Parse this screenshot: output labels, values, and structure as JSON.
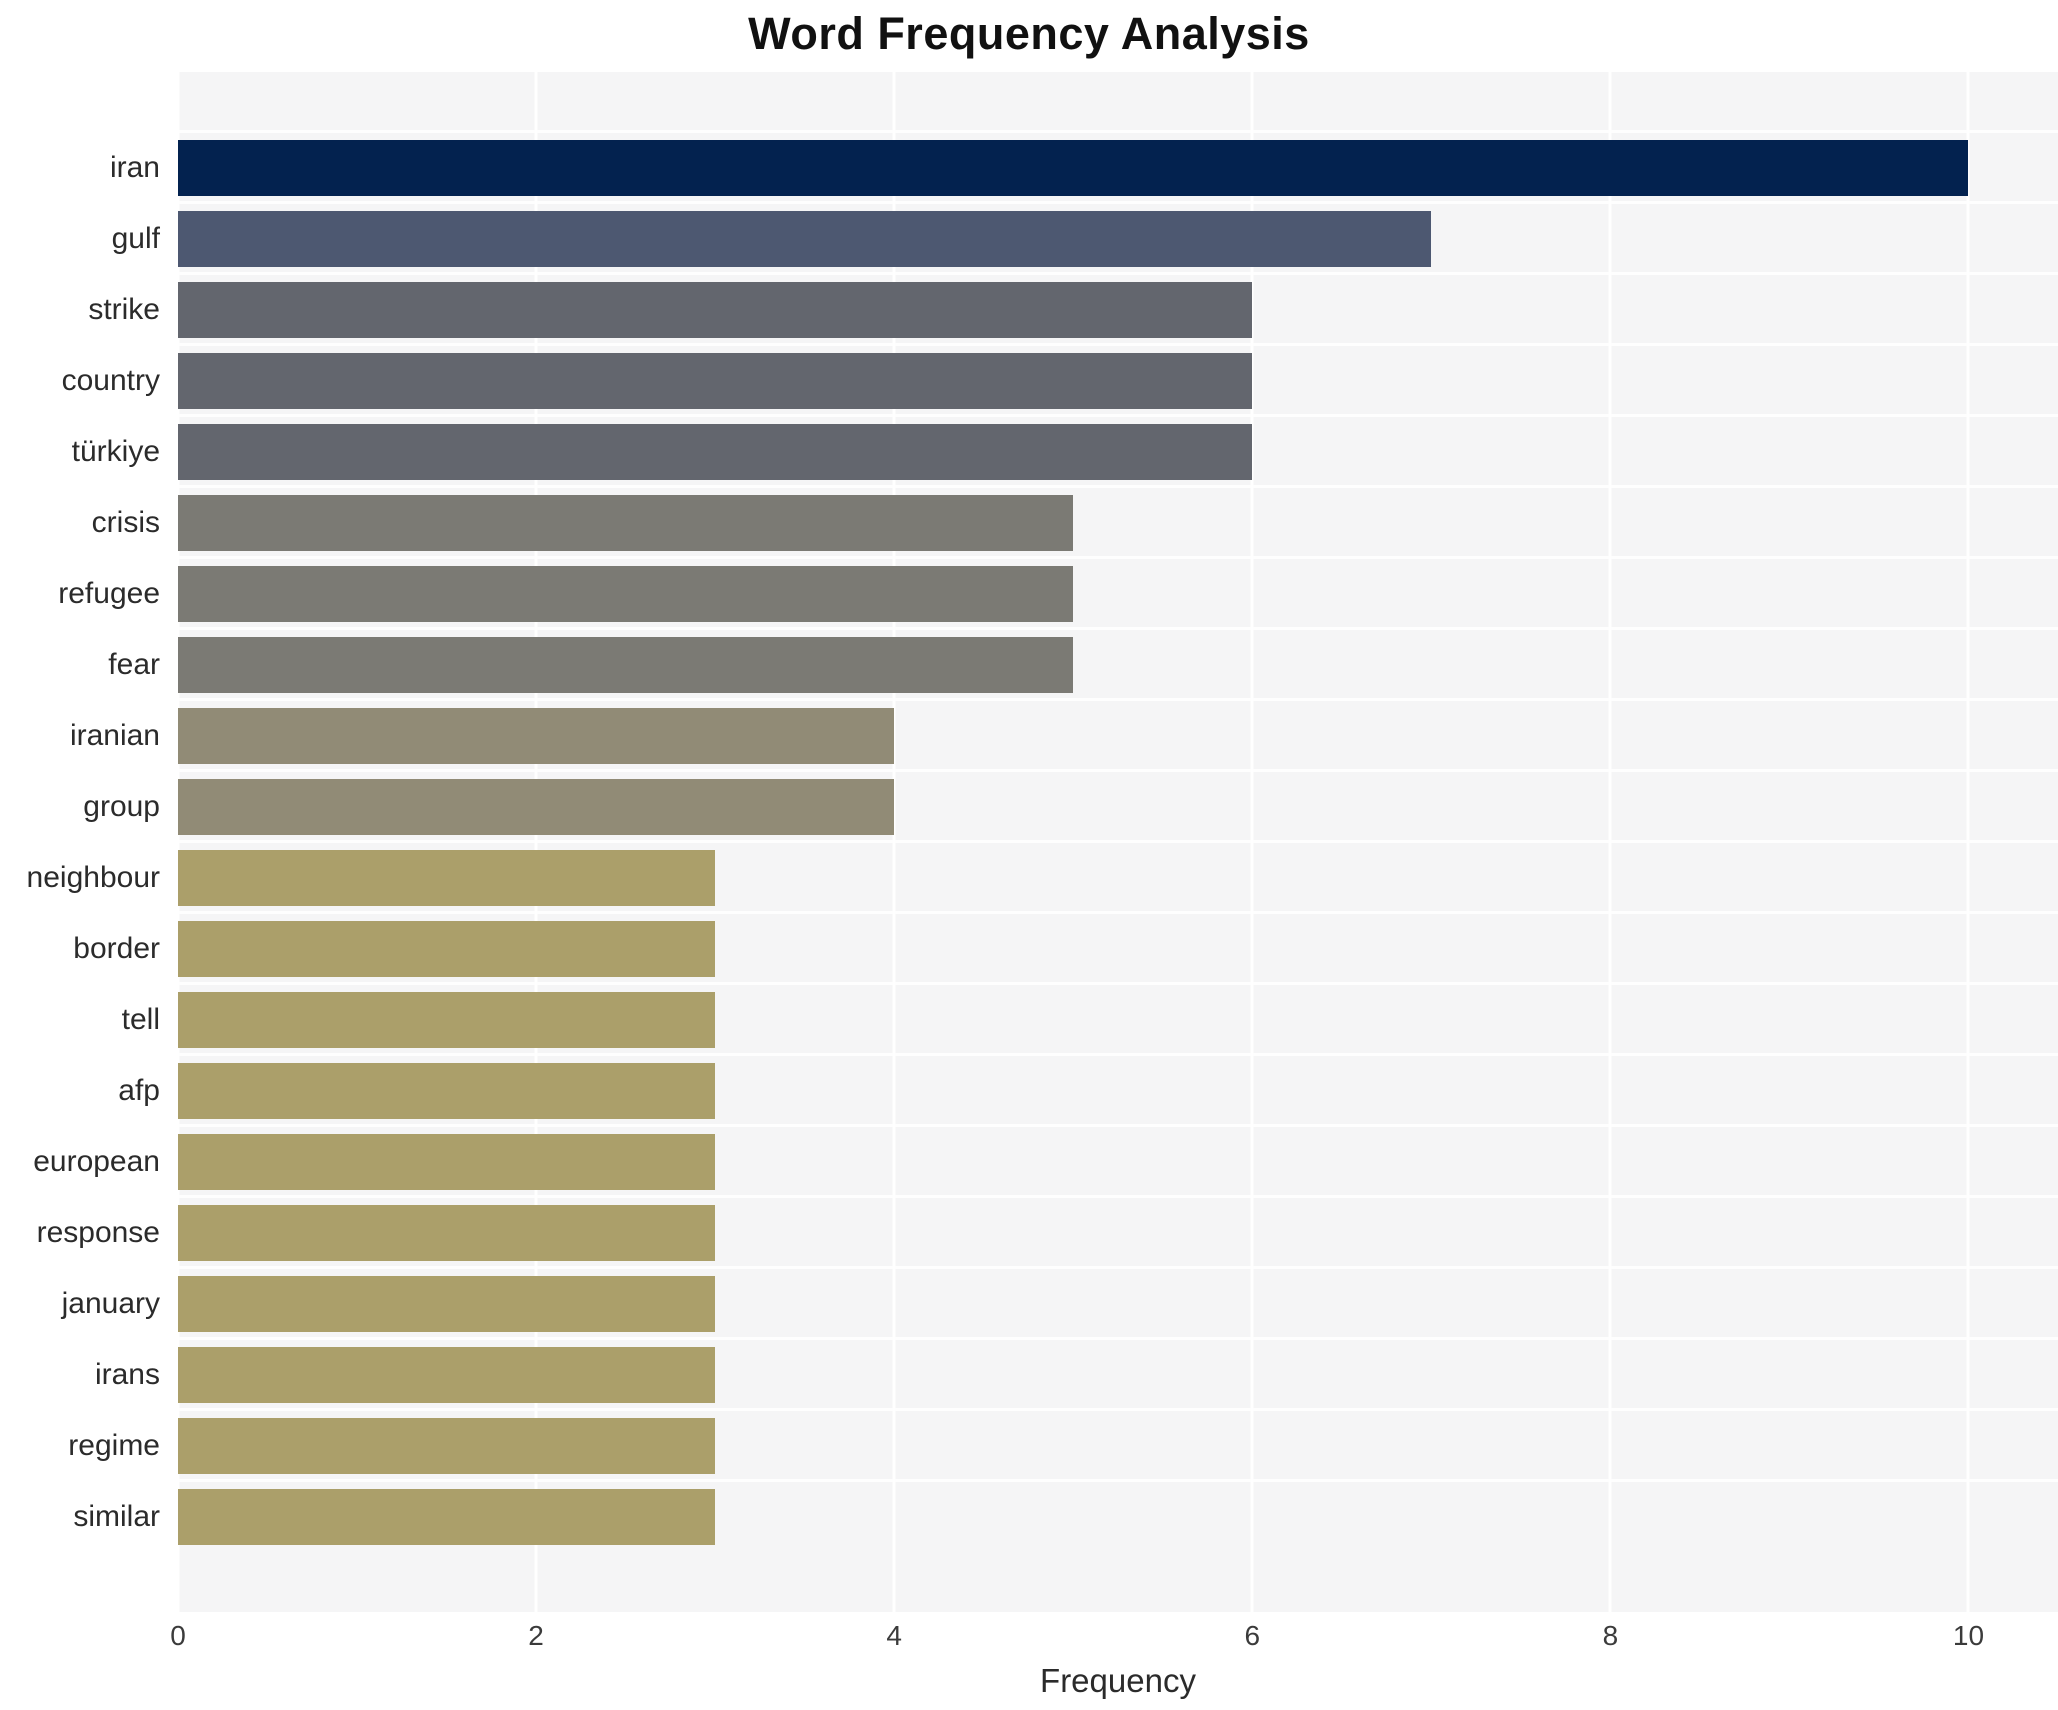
{
  "chart_data": {
    "type": "bar",
    "orientation": "horizontal",
    "title": "Word Frequency Analysis",
    "xlabel": "Frequency",
    "ylabel": "",
    "categories": [
      "iran",
      "gulf",
      "strike",
      "country",
      "türkiye",
      "crisis",
      "refugee",
      "fear",
      "iranian",
      "group",
      "neighbour",
      "border",
      "tell",
      "afp",
      "european",
      "response",
      "january",
      "irans",
      "regime",
      "similar"
    ],
    "values": [
      10,
      7,
      6,
      6,
      6,
      5,
      5,
      5,
      4,
      4,
      3,
      3,
      3,
      3,
      3,
      3,
      3,
      3,
      3,
      3
    ],
    "bar_colors": [
      "#03224f",
      "#4d5871",
      "#63666e",
      "#63666e",
      "#63666e",
      "#7b7a74",
      "#7b7a74",
      "#7b7a74",
      "#918b76",
      "#918b76",
      "#ab9f6a",
      "#ab9f6a",
      "#ab9f6a",
      "#ab9f6a",
      "#ab9f6a",
      "#ab9f6a",
      "#ab9f6a",
      "#ab9f6a",
      "#ab9f6a",
      "#ab9f6a"
    ],
    "xticks": [
      "0",
      "2",
      "4",
      "6",
      "8",
      "10"
    ],
    "xtick_values": [
      0,
      2,
      4,
      6,
      8,
      10
    ],
    "xlim": [
      0,
      10.5
    ],
    "grid": true,
    "legend": false,
    "colors": {
      "figure_background": "#ffffff",
      "plot_background": "#f5f5f6",
      "gridline": "#ffffff",
      "title_color": "#111111",
      "label_color": "#2b2b2b",
      "tick_color": "#3b3b3b"
    }
  }
}
